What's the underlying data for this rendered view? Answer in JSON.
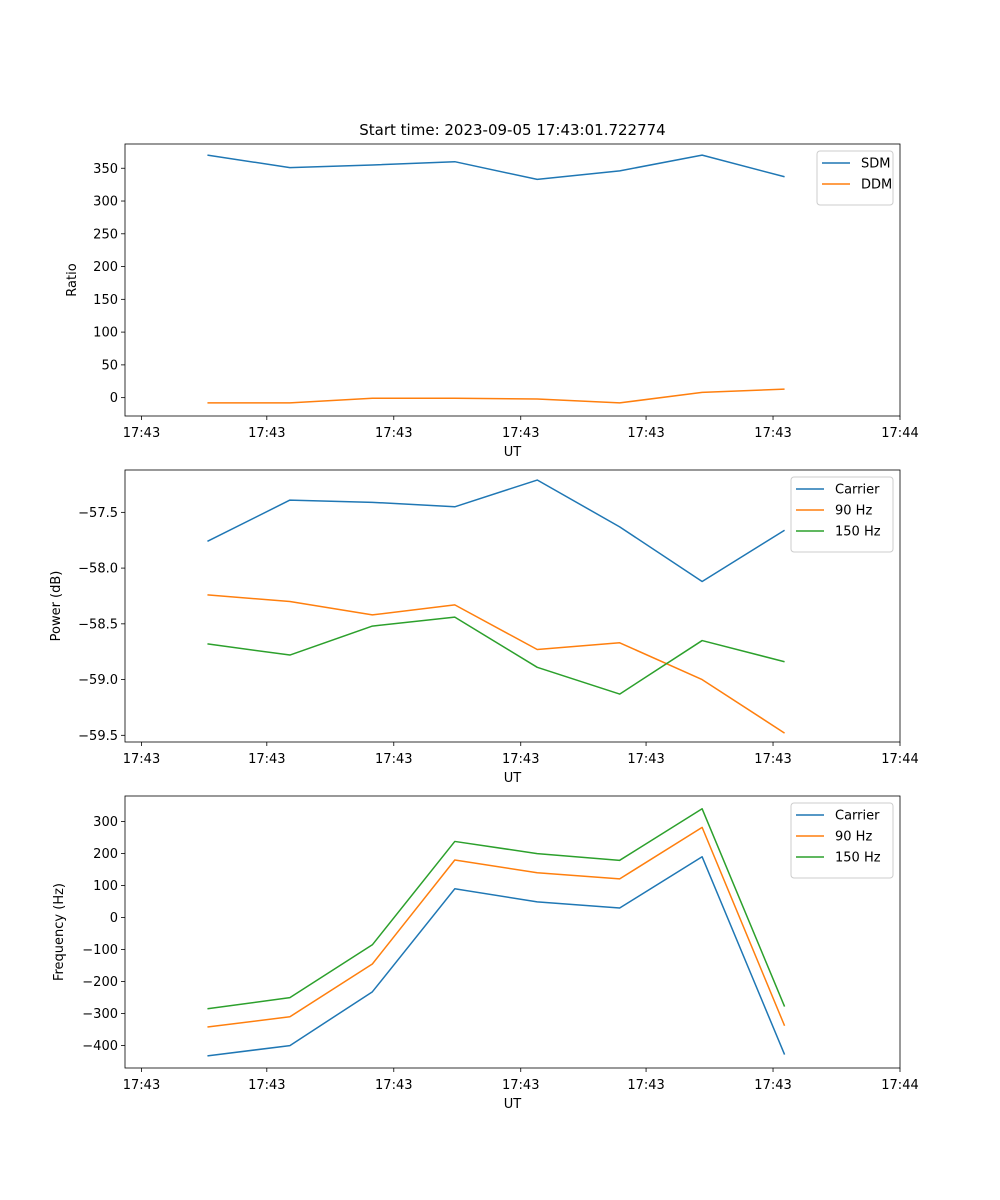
{
  "figure_title": "Start time: 2023-09-05 17:43:01.722774",
  "chart_data": [
    {
      "type": "line",
      "title": "Start time: 2023-09-05 17:43:01.722774",
      "xlabel": "UT",
      "ylabel": "Ratio",
      "x": [
        0.5,
        1.0,
        1.5,
        2.0,
        2.5,
        3.0,
        3.5,
        4.0
      ],
      "xlim": [
        0,
        4.7
      ],
      "x_ticks": [
        0.1,
        0.86,
        1.63,
        2.4,
        3.16,
        3.93,
        4.7
      ],
      "x_tick_labels": [
        "17:43",
        "17:43",
        "17:43",
        "17:43",
        "17:43",
        "17:43",
        "17:44"
      ],
      "ylim": [
        -28,
        387
      ],
      "y_ticks": [
        0,
        50,
        100,
        150,
        200,
        250,
        300,
        350
      ],
      "legend_position": "top-right",
      "series": [
        {
          "name": "SDM",
          "color": "#1f77b4",
          "values": [
            370,
            351,
            355,
            360,
            333,
            346,
            370,
            337
          ]
        },
        {
          "name": "DDM",
          "color": "#ff7f0e",
          "values": [
            -8,
            -8,
            -1,
            -1,
            -2,
            -8,
            8,
            13
          ]
        }
      ]
    },
    {
      "type": "line",
      "title": "",
      "xlabel": "UT",
      "ylabel": "Power (dB)",
      "x": [
        0.5,
        1.0,
        1.5,
        2.0,
        2.5,
        3.0,
        3.5,
        4.0
      ],
      "xlim": [
        0,
        4.7
      ],
      "x_ticks": [
        0.1,
        0.86,
        1.63,
        2.4,
        3.16,
        3.93,
        4.7
      ],
      "x_tick_labels": [
        "17:43",
        "17:43",
        "17:43",
        "17:43",
        "17:43",
        "17:43",
        "17:44"
      ],
      "ylim": [
        -59.56,
        -57.12
      ],
      "y_ticks": [
        -59.5,
        -59.0,
        -58.5,
        -58.0,
        -57.5
      ],
      "y_tick_labels": [
        "−59.5",
        "−59.0",
        "−58.5",
        "−58.0",
        "−57.5"
      ],
      "legend_position": "top-right",
      "series": [
        {
          "name": "Carrier",
          "color": "#1f77b4",
          "values": [
            -57.76,
            -57.39,
            -57.41,
            -57.45,
            -57.21,
            -57.63,
            -58.12,
            -57.66
          ]
        },
        {
          "name": "90 Hz",
          "color": "#ff7f0e",
          "values": [
            -58.24,
            -58.3,
            -58.42,
            -58.33,
            -58.73,
            -58.67,
            -59.0,
            -59.48
          ]
        },
        {
          "name": "150 Hz",
          "color": "#2ca02c",
          "values": [
            -58.68,
            -58.78,
            -58.52,
            -58.44,
            -58.89,
            -59.13,
            -58.65,
            -58.84
          ]
        }
      ]
    },
    {
      "type": "line",
      "title": "",
      "xlabel": "UT",
      "ylabel": "Frequency (Hz)",
      "x": [
        0.5,
        1.0,
        1.5,
        2.0,
        2.5,
        3.0,
        3.5,
        4.0
      ],
      "xlim": [
        0,
        4.7
      ],
      "x_ticks": [
        0.1,
        0.86,
        1.63,
        2.4,
        3.16,
        3.93,
        4.7
      ],
      "x_tick_labels": [
        "17:43",
        "17:43",
        "17:43",
        "17:43",
        "17:43",
        "17:43",
        "17:44"
      ],
      "ylim": [
        -470,
        380
      ],
      "y_ticks": [
        -400,
        -300,
        -200,
        -100,
        0,
        100,
        200,
        300
      ],
      "y_tick_labels": [
        "−400",
        "−300",
        "−200",
        "−100",
        "0",
        "100",
        "200",
        "300"
      ],
      "legend_position": "top-right",
      "series": [
        {
          "name": "Carrier",
          "color": "#1f77b4",
          "values": [
            -432,
            -400,
            -232,
            90,
            49,
            30,
            190,
            -428
          ]
        },
        {
          "name": "90 Hz",
          "color": "#ff7f0e",
          "values": [
            -342,
            -310,
            -145,
            180,
            140,
            121,
            282,
            -338
          ]
        },
        {
          "name": "150 Hz",
          "color": "#2ca02c",
          "values": [
            -285,
            -250,
            -85,
            238,
            200,
            179,
            340,
            -278
          ]
        }
      ]
    }
  ]
}
